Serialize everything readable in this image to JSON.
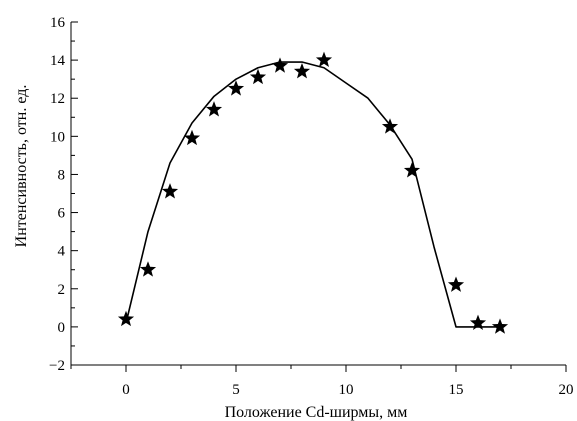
{
  "chart_data": {
    "type": "line",
    "xlabel": "Положение Cd-ширмы, мм",
    "ylabel": "Интенсивность, отн. ед.",
    "xlim": [
      -2.5,
      20
    ],
    "ylim": [
      -2,
      16
    ],
    "xticks": [
      0,
      5,
      10,
      15,
      20
    ],
    "yticks": [
      -2,
      0,
      2,
      4,
      6,
      8,
      10,
      12,
      14,
      16
    ],
    "x_minor_ticks": [
      -2.5,
      2.5,
      7.5,
      12.5,
      17.5
    ],
    "y_minor_ticks": [
      -1,
      1,
      3,
      5,
      7,
      9,
      11,
      13,
      15
    ],
    "xtick_labels": [
      "0",
      "5",
      "10",
      "15",
      "20"
    ],
    "ytick_labels": [
      "−2",
      "0",
      "2",
      "4",
      "6",
      "8",
      "10",
      "12",
      "14",
      "16"
    ],
    "grid": false,
    "series": [
      {
        "style": "line",
        "color": "#000000",
        "x": [
          0,
          1,
          2,
          3,
          4,
          5,
          6,
          7,
          8,
          9,
          10,
          11,
          12,
          13,
          14,
          15,
          16,
          17
        ],
        "y": [
          0.2,
          5.0,
          8.6,
          10.7,
          12.1,
          13.0,
          13.6,
          13.9,
          13.9,
          13.6,
          12.8,
          12.0,
          10.6,
          8.8,
          4.2,
          0.0,
          0.0,
          0.0
        ]
      },
      {
        "style": "markers",
        "marker": "star",
        "color": "#000000",
        "x": [
          0,
          1,
          2,
          3,
          4,
          5,
          6,
          7,
          8,
          9,
          12,
          13,
          15,
          16,
          17
        ],
        "y": [
          0.4,
          3.0,
          7.1,
          9.9,
          11.4,
          12.5,
          13.1,
          13.7,
          13.4,
          14.0,
          10.5,
          8.2,
          2.2,
          0.2,
          0.0
        ]
      }
    ]
  }
}
